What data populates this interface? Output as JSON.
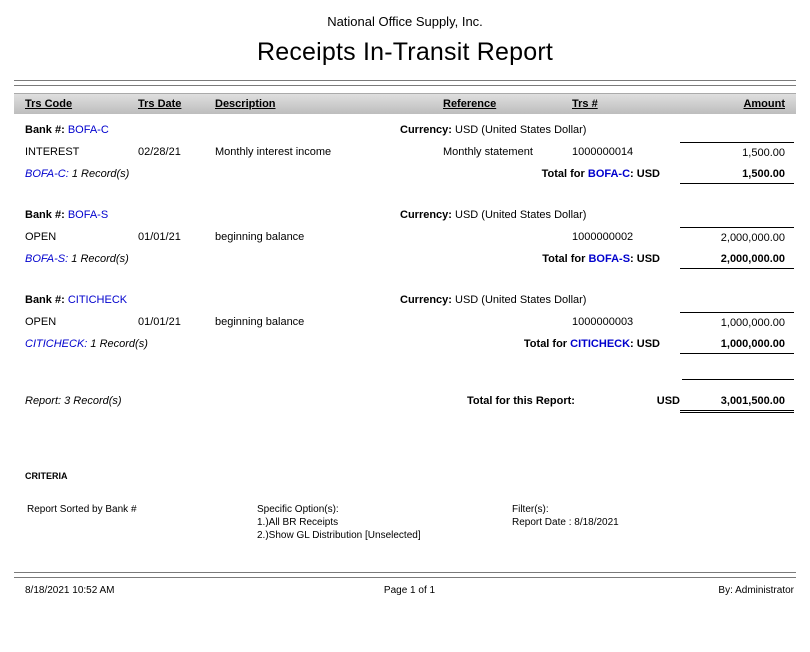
{
  "header": {
    "company": "National Office Supply, Inc.",
    "title": "Receipts In-Transit Report"
  },
  "colors": {
    "bank_code": "#0000cd"
  },
  "table": {
    "headers": {
      "trs_code": "Trs Code",
      "trs_date": "Trs Date",
      "description": "Description",
      "reference": "Reference",
      "trs_number": "Trs #",
      "amount": "Amount"
    }
  },
  "labels": {
    "bank": "Bank #:",
    "currency": "Currency:",
    "total_for": "Total for",
    "colon_usd": ": USD"
  },
  "groups": [
    {
      "bank_code": "BOFA-C",
      "currency": "USD (United States Dollar)",
      "rows": [
        {
          "trs_code": "INTEREST",
          "trs_date": "02/28/21",
          "description": "Monthly interest income",
          "reference": "Monthly statement",
          "trs_number": "1000000014",
          "amount": "1,500.00"
        }
      ],
      "records_bank": "BOFA-C:",
      "records_count": "1 Record(s)",
      "total_amount": "1,500.00"
    },
    {
      "bank_code": "BOFA-S",
      "currency": "USD (United States Dollar)",
      "rows": [
        {
          "trs_code": "OPEN",
          "trs_date": "01/01/21",
          "description": "beginning balance",
          "reference": "",
          "trs_number": "1000000002",
          "amount": "2,000,000.00"
        }
      ],
      "records_bank": "BOFA-S:",
      "records_count": "1 Record(s)",
      "total_amount": "2,000,000.00"
    },
    {
      "bank_code": "CITICHECK",
      "currency": "USD (United States Dollar)",
      "rows": [
        {
          "trs_code": "OPEN",
          "trs_date": "01/01/21",
          "description": "beginning balance",
          "reference": "",
          "trs_number": "1000000003",
          "amount": "1,000,000.00"
        }
      ],
      "records_bank": "CITICHECK:",
      "records_count": "1 Record(s)",
      "total_amount": "1,000,000.00"
    }
  ],
  "report_total": {
    "records": "Report: 3 Record(s)",
    "label": "Total for this Report:",
    "currency": "USD",
    "amount": "3,001,500.00"
  },
  "criteria": {
    "heading": "CRITERIA",
    "sorted_by": "Report Sorted by Bank #",
    "specific_options_label": "Specific Option(s):",
    "option1": "1.)All BR Receipts",
    "option2": "2.)Show GL Distribution [Unselected]",
    "filters_label": "Filter(s):",
    "filter1": "Report Date : 8/18/2021"
  },
  "footer": {
    "datetime": "8/18/2021 10:52 AM",
    "page": "Page 1 of 1",
    "by": "By: Administrator"
  }
}
